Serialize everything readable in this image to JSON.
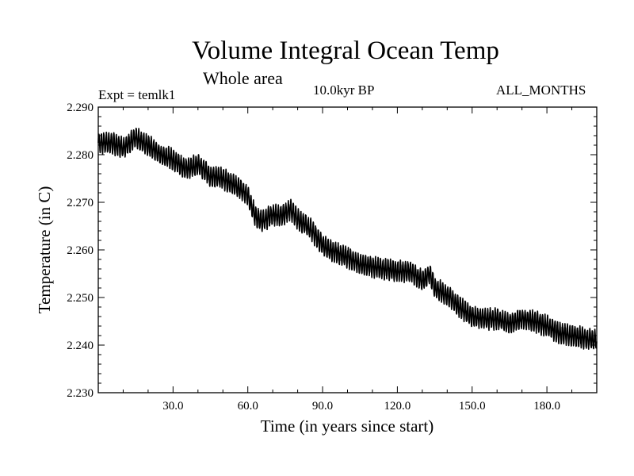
{
  "header": {
    "title": "Volume Integral Ocean Temp",
    "subtitle": "Whole area",
    "experiment": "Expt = temlk1",
    "period": "10.0kyr BP",
    "months": "ALL_MONTHS"
  },
  "chart_data": {
    "type": "line",
    "title": "Volume Integral Ocean Temp",
    "subtitle": "Whole area",
    "xlabel": "Time (in years since start)",
    "ylabel": "Temperature (in C)",
    "xlim": [
      0,
      200
    ],
    "ylim": [
      2.23,
      2.29
    ],
    "x_ticks": [
      30,
      60,
      90,
      120,
      150,
      180
    ],
    "x_tick_labels": [
      "30.0",
      "60.0",
      "90.0",
      "120.0",
      "150.0",
      "180.0"
    ],
    "y_ticks": [
      2.23,
      2.24,
      2.25,
      2.26,
      2.27,
      2.28,
      2.29
    ],
    "y_tick_labels": [
      "2.230",
      "2.240",
      "2.250",
      "2.260",
      "2.270",
      "2.280",
      "2.290"
    ],
    "grid": false,
    "line_color": "#000000",
    "series": [
      {
        "name": "temlk1",
        "note": "annual-mean trend; monthly values oscillate about +/-0.002 C around it",
        "x": [
          0,
          5,
          10,
          15,
          20,
          25,
          30,
          35,
          40,
          45,
          50,
          55,
          60,
          63,
          66,
          70,
          73,
          77,
          80,
          85,
          90,
          95,
          100,
          105,
          110,
          115,
          120,
          125,
          130,
          133,
          135,
          140,
          145,
          150,
          155,
          160,
          165,
          170,
          175,
          180,
          185,
          190,
          195,
          200
        ],
        "values": [
          2.2825,
          2.2825,
          2.2815,
          2.2835,
          2.282,
          2.28,
          2.279,
          2.277,
          2.278,
          2.2755,
          2.275,
          2.2735,
          2.2715,
          2.267,
          2.266,
          2.2675,
          2.267,
          2.2685,
          2.2665,
          2.2645,
          2.261,
          2.2595,
          2.2585,
          2.257,
          2.2565,
          2.256,
          2.2555,
          2.2555,
          2.2535,
          2.255,
          2.252,
          2.2505,
          2.248,
          2.246,
          2.2455,
          2.2455,
          2.2445,
          2.2455,
          2.245,
          2.244,
          2.2425,
          2.242,
          2.2415,
          2.241
        ]
      }
    ]
  }
}
